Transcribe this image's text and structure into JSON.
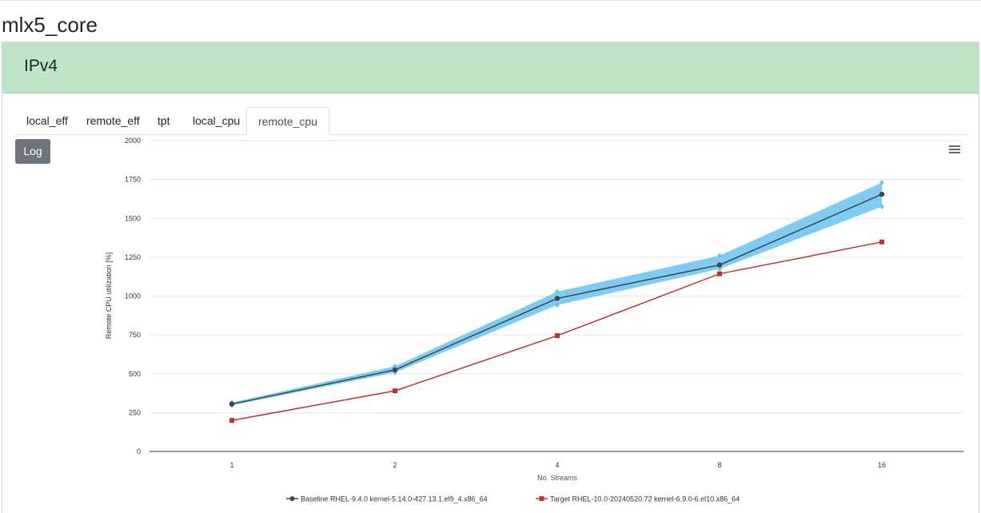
{
  "module_title": "mlx5_core",
  "panel_title": "IPv4",
  "tabs": [
    {
      "label": "local_eff",
      "active": false
    },
    {
      "label": "remote_eff",
      "active": false
    },
    {
      "label": "tpt",
      "active": false
    },
    {
      "label": "local_cpu",
      "active": false
    },
    {
      "label": "remote_cpu",
      "active": true
    }
  ],
  "log_button": "Log",
  "menu_icon": "hamburger-menu-icon",
  "colors": {
    "band": "#7ecbf4",
    "band_marker": "#6ec3ef",
    "baseline": "#434348",
    "target": "#c0302a",
    "header_bg": "#c0e4c8"
  },
  "chart_data": {
    "type": "line",
    "xlabel": "No. Streams",
    "ylabel": "Remote CPU utilization [%]",
    "categories": [
      "1",
      "2",
      "4",
      "8",
      "16"
    ],
    "ylim": [
      0,
      2000
    ],
    "yticks": [
      0,
      250,
      500,
      750,
      1000,
      1250,
      1500,
      1750,
      2000
    ],
    "grid": true,
    "legend_position": "bottom-center",
    "band": {
      "low": [
        297,
        508,
        942,
        1175,
        1575
      ],
      "high": [
        315,
        548,
        1028,
        1260,
        1730
      ]
    },
    "series": [
      {
        "name": "Baseline RHEL-9.4.0 kernel-5.14.0-427.13.1.el9_4.x86_64",
        "marker": "circle",
        "values": [
          305,
          525,
          985,
          1200,
          1655
        ]
      },
      {
        "name": "Target RHEL-10.0-20240520.72 kernel-6.9.0-6.el10.x86_64",
        "marker": "square",
        "values": [
          200,
          390,
          745,
          1143,
          1348
        ]
      }
    ]
  }
}
